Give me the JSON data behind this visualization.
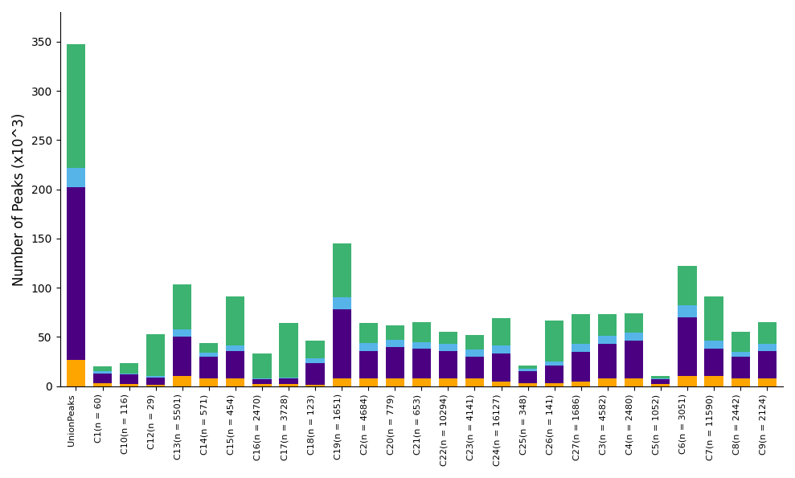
{
  "categories": [
    "UnionPeaks",
    "C1(n = 60)",
    "C10(n = 116)",
    "C12(n = 29)",
    "C13(n = 5501)",
    "C14(n = 571)",
    "C15(n = 454)",
    "C16(n = 2470)",
    "C17(n = 3728)",
    "C18(n = 123)",
    "C19(n = 1651)",
    "C2(n = 4684)",
    "C20(n = 779)",
    "C21(n = 653)",
    "C22(n = 10294)",
    "C23(n = 4141)",
    "C24(n = 16127)",
    "C25(n = 348)",
    "C26(n = 141)",
    "C27(n = 1686)",
    "C3(n = 4582)",
    "C4(n = 2480)",
    "C5(n = 1052)",
    "C6(n = 3051)",
    "C7(n = 11590)",
    "C8(n = 2442)",
    "C9(n = 2124)"
  ],
  "orange": [
    27,
    3,
    2,
    1,
    10,
    8,
    8,
    2,
    2,
    1,
    8,
    8,
    8,
    8,
    8,
    8,
    5,
    3,
    3,
    5,
    8,
    8,
    2,
    10,
    10,
    8,
    8
  ],
  "purple": [
    175,
    10,
    10,
    8,
    40,
    22,
    28,
    5,
    6,
    22,
    70,
    28,
    32,
    30,
    28,
    22,
    28,
    12,
    18,
    30,
    35,
    38,
    5,
    60,
    28,
    22,
    28
  ],
  "lightblue": [
    20,
    2,
    1,
    1,
    8,
    4,
    5,
    1,
    1,
    5,
    12,
    8,
    7,
    7,
    7,
    7,
    8,
    3,
    4,
    8,
    8,
    8,
    1,
    12,
    8,
    5,
    7
  ],
  "green": [
    125,
    5,
    10,
    43,
    45,
    10,
    50,
    25,
    55,
    18,
    55,
    20,
    15,
    20,
    12,
    15,
    28,
    3,
    42,
    30,
    22,
    20,
    2,
    40,
    45,
    20,
    22
  ],
  "colors": {
    "orange": "#FFA500",
    "purple": "#4B0082",
    "lightblue": "#56B4E9",
    "green": "#3CB371"
  },
  "ylabel": "Number of Peaks (x10^3)",
  "ylim": [
    0,
    380
  ],
  "yticks": [
    0,
    50,
    100,
    150,
    200,
    250,
    300,
    350
  ],
  "figsize": [
    9.89,
    5.95
  ],
  "dpi": 100
}
